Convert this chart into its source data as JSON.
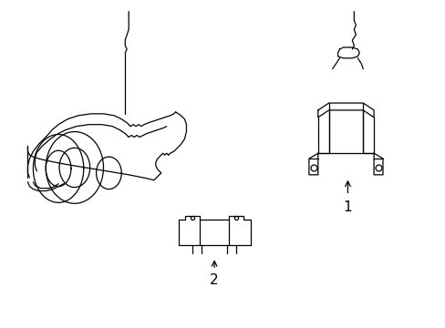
{
  "background_color": "#ffffff",
  "line_color": "#000000",
  "lw": 0.9,
  "fig_width": 4.89,
  "fig_height": 3.6,
  "dpi": 100
}
